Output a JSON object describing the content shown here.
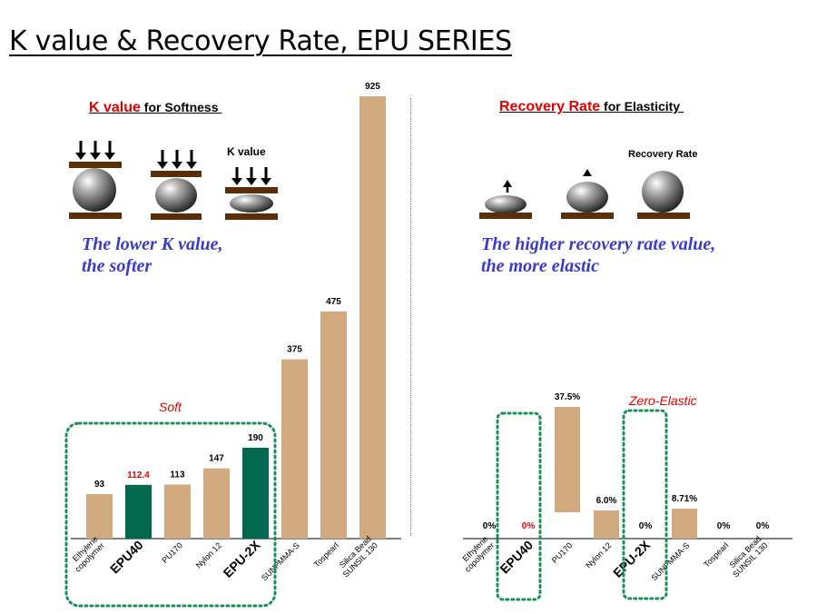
{
  "page": {
    "title": "K value & Recovery Rate, EPU SERIES"
  },
  "k_section": {
    "heading_highlight": "K value",
    "heading_rest": " for Softness",
    "illustration_label": "K value",
    "tagline_line1": "The lower K value,",
    "tagline_line2": "the softer",
    "group_label": "Soft"
  },
  "r_section": {
    "heading_highlight": "Recovery Rate",
    "heading_rest": " for Elasticity",
    "illustration_label": "Recovery Rate",
    "tagline_line1": "The higher recovery rate value,",
    "tagline_line2": "the more elastic",
    "group_label": "Zero-Elastic"
  },
  "colors": {
    "tan": "#d2aa80",
    "green": "#03694e",
    "red": "#e00000",
    "dotted_box": "#1a8f5a",
    "plate": "#5b2e0a",
    "tagline": "#3a3acc"
  },
  "chart_data": [
    {
      "type": "bar",
      "categories": [
        "Ethylene copolymer",
        "EPU40",
        "PU170",
        "Nylon 12",
        "EPU-2X",
        "SUNPMMA-S",
        "Tospearl",
        "Silica Bead SUNSIL 130"
      ],
      "values": [
        93,
        112.4,
        113,
        147,
        190,
        375,
        475,
        925
      ],
      "value_labels": [
        "93",
        "112.4",
        "113",
        "147",
        "190",
        "375",
        "475",
        "925"
      ],
      "highlight_categories": [
        "EPU40",
        "EPU-2X"
      ],
      "ylim": [
        0,
        925
      ],
      "grid": false
    },
    {
      "type": "bar",
      "categories": [
        "Ethylene copolymer",
        "EPU40",
        "PU170",
        "Nylon 12",
        "EPU-2X",
        "SUNPMMA-S",
        "Tospearl",
        "Silica Bead SUNSIL 130"
      ],
      "values": [
        0,
        0,
        37.5,
        6.0,
        0,
        8.71,
        0,
        0
      ],
      "value_labels": [
        "0%",
        "0%",
        "37.5%",
        "6.0%",
        "0%",
        "8.71%",
        "0%",
        "0%"
      ],
      "highlight_categories": [
        "EPU40",
        "EPU-2X"
      ],
      "grid": false
    }
  ]
}
